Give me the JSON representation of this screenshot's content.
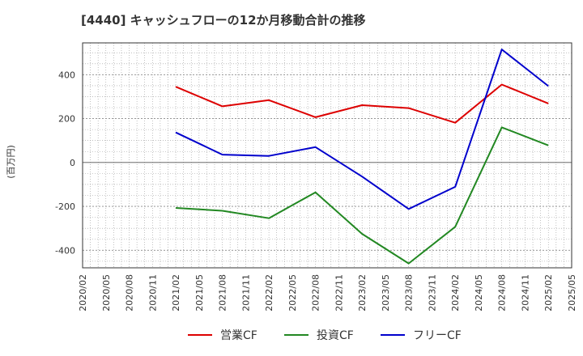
{
  "chart_data": {
    "type": "line",
    "title": "[4440]  キャッシュフローの12か月移動合計の推移",
    "ylabel": "(百万円)",
    "xlabel": "",
    "ylim": [
      -480,
      545
    ],
    "yticks": [
      -400,
      -200,
      0,
      200,
      400
    ],
    "categories": [
      "2020/02",
      "2020/05",
      "2020/08",
      "2020/11",
      "2021/02",
      "2021/05",
      "2021/08",
      "2021/11",
      "2022/02",
      "2022/05",
      "2022/08",
      "2022/11",
      "2023/02",
      "2023/05",
      "2023/08",
      "2023/11",
      "2024/02",
      "2024/05",
      "2024/08",
      "2024/11",
      "2025/02",
      "2025/05"
    ],
    "series": [
      {
        "name": "営業CF",
        "color": "#dd0000",
        "points": [
          [
            "2021/02",
            345
          ],
          [
            "2021/08",
            256
          ],
          [
            "2022/02",
            284
          ],
          [
            "2022/08",
            206
          ],
          [
            "2023/02",
            261
          ],
          [
            "2023/08",
            248
          ],
          [
            "2024/02",
            181
          ],
          [
            "2024/08",
            355
          ],
          [
            "2025/02",
            269
          ]
        ]
      },
      {
        "name": "投資CF",
        "color": "#228822",
        "points": [
          [
            "2021/02",
            -207
          ],
          [
            "2021/08",
            -220
          ],
          [
            "2022/02",
            -254
          ],
          [
            "2022/08",
            -136
          ],
          [
            "2023/02",
            -325
          ],
          [
            "2023/08",
            -460
          ],
          [
            "2024/02",
            -293
          ],
          [
            "2024/08",
            160
          ],
          [
            "2025/02",
            78
          ]
        ]
      },
      {
        "name": "フリーCF",
        "color": "#0000cc",
        "points": [
          [
            "2021/02",
            137
          ],
          [
            "2021/08",
            36
          ],
          [
            "2022/02",
            30
          ],
          [
            "2022/08",
            70
          ],
          [
            "2023/02",
            -64
          ],
          [
            "2023/08",
            -212
          ],
          [
            "2024/02",
            -111
          ],
          [
            "2024/08",
            515
          ],
          [
            "2025/02",
            348
          ]
        ]
      }
    ],
    "legend": "bottom"
  }
}
